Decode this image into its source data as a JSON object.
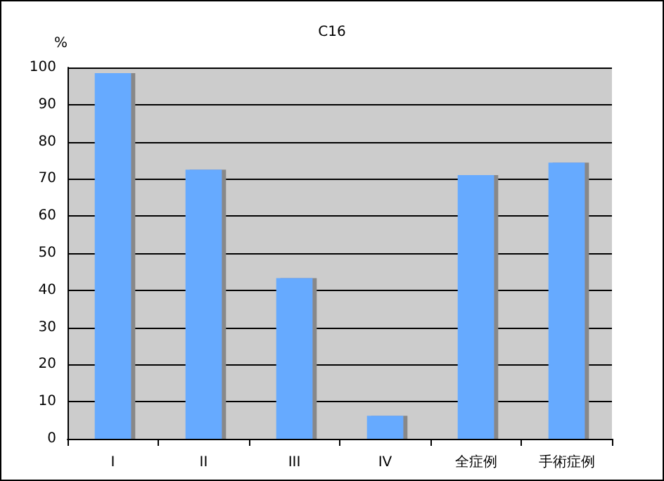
{
  "chart_data": {
    "type": "bar",
    "title": "C16",
    "ylabel": "%",
    "categories": [
      "I",
      "II",
      "III",
      "IV",
      "全症例",
      "手術症例"
    ],
    "values": [
      98.5,
      72.5,
      43.3,
      6.2,
      71,
      74.4
    ],
    "color": "#66aaff",
    "ylim": [
      0,
      100
    ],
    "yticks": [
      0,
      10,
      20,
      30,
      40,
      50,
      60,
      70,
      80,
      90,
      100
    ],
    "grid": "y"
  }
}
